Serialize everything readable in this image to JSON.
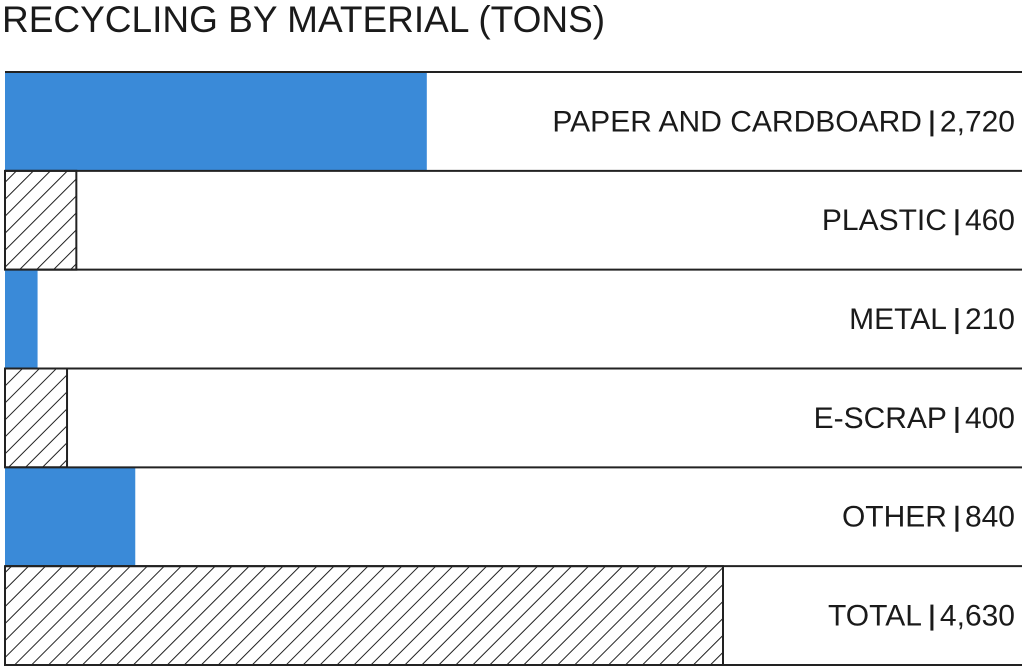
{
  "chart_data": {
    "type": "bar",
    "orientation": "horizontal",
    "title": "RECYCLING BY MATERIAL (TONS)",
    "categories": [
      "PAPER AND CARDBOARD",
      "PLASTIC",
      "METAL",
      "E-SCRAP",
      "OTHER",
      "TOTAL"
    ],
    "values": [
      2720,
      460,
      210,
      400,
      840,
      4630
    ],
    "value_labels": [
      "2,720",
      "460",
      "210",
      "400",
      "840",
      "4,630"
    ],
    "color": "#3a8ad8",
    "patterns": [
      "solid",
      "hatched",
      "solid",
      "hatched",
      "solid",
      "hatched"
    ]
  }
}
